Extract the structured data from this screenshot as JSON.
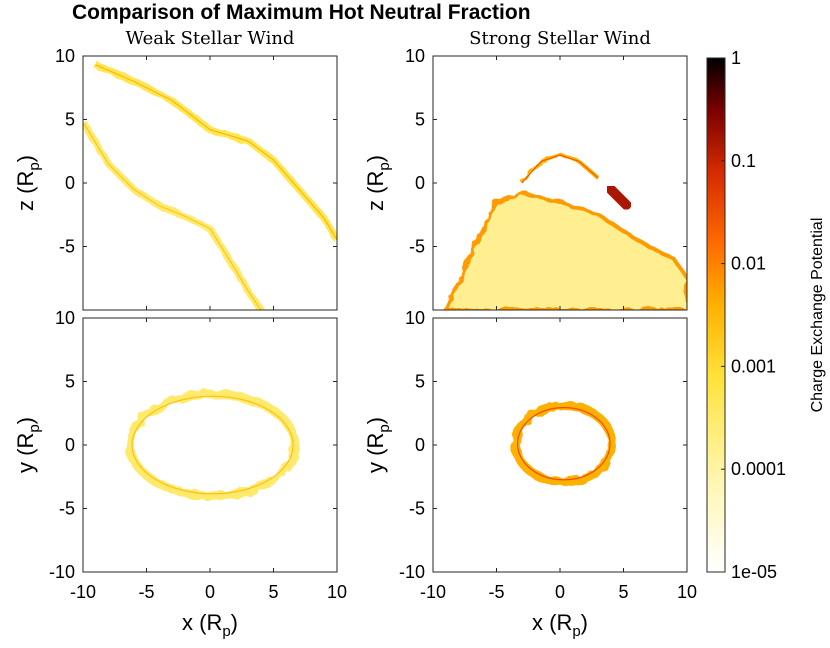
{
  "chart_data": {
    "type": "heatmap",
    "title": "Comparison of Maximum Hot Neutral Fraction",
    "panels": [
      {
        "id": "weak-xz",
        "subtitle": "Weak Stellar Wind",
        "xlim": [
          -10,
          10
        ],
        "ylim": [
          -10,
          10
        ],
        "ylabel": "z (R",
        "ylabel_sub": "p",
        "ylabel_end": ")",
        "xticks": [],
        "yticks": [
          "10",
          "5",
          "0",
          "-5"
        ],
        "features": [
          {
            "shape": "band",
            "points": [
              [
                -9,
                9.3
              ],
              [
                -6,
                8
              ],
              [
                -3,
                6.5
              ],
              [
                0,
                4.2
              ],
              [
                3,
                3.3
              ],
              [
                5,
                1.8
              ],
              [
                7,
                -0.5
              ],
              [
                9,
                -2.8
              ],
              [
                10,
                -4.5
              ]
            ],
            "level": 0.0005
          },
          {
            "shape": "band",
            "points": [
              [
                -10,
                4.8
              ],
              [
                -8,
                1.5
              ],
              [
                -6,
                -0.5
              ],
              [
                -4,
                -1.8
              ],
              [
                -2,
                -2.6
              ],
              [
                0,
                -3.6
              ],
              [
                1.5,
                -6
              ],
              [
                3,
                -8.5
              ],
              [
                4,
                -10
              ]
            ],
            "level": 0.0003
          }
        ]
      },
      {
        "id": "strong-xz",
        "subtitle": "Strong Stellar Wind",
        "xlim": [
          -10,
          10
        ],
        "ylim": [
          -10,
          10
        ],
        "ylabel": "z (R",
        "ylabel_sub": "p",
        "ylabel_end": ")",
        "xticks": [],
        "yticks": [
          "10",
          "5",
          "0",
          "-5"
        ],
        "features": [
          {
            "shape": "dome",
            "points": [
              [
                -3,
                0
              ],
              [
                -1.5,
                1.7
              ],
              [
                0,
                2.2
              ],
              [
                1.5,
                1.7
              ],
              [
                3,
                0.4
              ]
            ],
            "level": 0.004
          },
          {
            "shape": "wake",
            "points": [
              [
                -9,
                -10
              ],
              [
                -7,
                -5.5
              ],
              [
                -5,
                -1.5
              ],
              [
                -3,
                -0.8
              ],
              [
                0,
                -1.5
              ],
              [
                3,
                -2.5
              ],
              [
                5,
                -3.8
              ],
              [
                7,
                -5
              ],
              [
                9,
                -6
              ],
              [
                10,
                -7.5
              ],
              [
                10,
                -10
              ]
            ],
            "level": 0.0003
          },
          {
            "shape": "blob",
            "points": [
              [
                4,
                -0.5
              ],
              [
                5.3,
                -1.8
              ]
            ],
            "level": 0.15
          }
        ]
      },
      {
        "id": "weak-xy",
        "subtitle": "",
        "xlim": [
          -10,
          10
        ],
        "ylim": [
          -10,
          10
        ],
        "ylabel": "y (R",
        "ylabel_sub": "p",
        "ylabel_end": ")",
        "xlabel": "x (R",
        "xlabel_sub": "p",
        "xlabel_end": ")",
        "xticks": [
          "-10",
          "-5",
          "0",
          "5",
          "10"
        ],
        "yticks": [
          "10",
          "5",
          "0",
          "-5",
          "-10"
        ],
        "features": [
          {
            "shape": "ring",
            "center": [
              0.2,
              0
            ],
            "radii": [
              6.5,
              4.0
            ],
            "level": 0.0003
          }
        ]
      },
      {
        "id": "strong-xy",
        "subtitle": "",
        "xlim": [
          -10,
          10
        ],
        "ylim": [
          -10,
          10
        ],
        "ylabel": "y (R",
        "ylabel_sub": "p",
        "ylabel_end": ")",
        "xlabel": "x (R",
        "xlabel_sub": "p",
        "xlabel_end": ")",
        "xticks": [
          "-10",
          "-5",
          "0",
          "5",
          "10"
        ],
        "yticks": [
          "10",
          "5",
          "0",
          "-5",
          "-10"
        ],
        "features": [
          {
            "shape": "ring",
            "center": [
              0.3,
              0.1
            ],
            "radii": [
              3.8,
              3.0
            ],
            "level": 0.004
          }
        ]
      }
    ],
    "colorbar": {
      "label": "Charge Exchange Potential",
      "scale": "log",
      "range": [
        1e-05,
        1
      ],
      "ticks": [
        "1",
        "0.1",
        "0.01",
        "0.001",
        "0.0001",
        "1e-05"
      ],
      "colormap": [
        "#ffffff",
        "#fff6b0",
        "#ffe23a",
        "#ffb000",
        "#ff6a00",
        "#d42a00",
        "#7a0000",
        "#000000"
      ]
    }
  }
}
